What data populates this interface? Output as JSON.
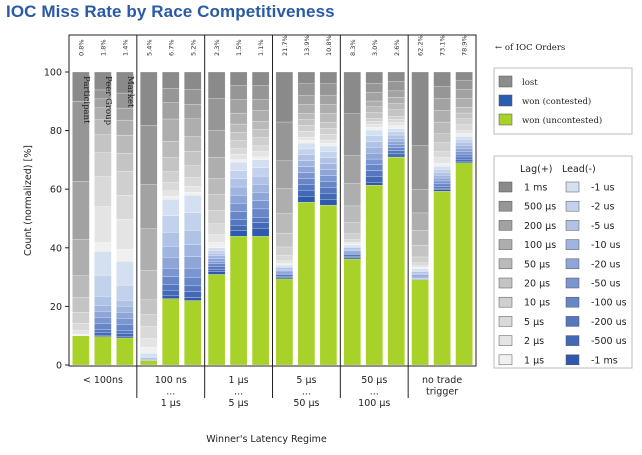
{
  "chart_data": {
    "type": "bar",
    "title": "IOC Miss Rate by Race Competitiveness",
    "ylabel": "Count (normalized) [%]",
    "xlabel": "Winner's Latency Regime",
    "ylim": [
      0,
      100
    ],
    "yticks": [
      0,
      20,
      40,
      60,
      80,
      100
    ],
    "group_labels": [
      [
        "< 100ns"
      ],
      [
        "100 ns",
        "...",
        "1 μs"
      ],
      [
        "1 μs",
        "...",
        "5 μs"
      ],
      [
        "5 μs",
        "...",
        "50 μs"
      ],
      [
        "50 μs",
        "...",
        "100 μs"
      ],
      [
        "no trade",
        "trigger"
      ]
    ],
    "bar_labels": [
      "Participant",
      "Peer Group",
      "Market"
    ],
    "ioc_percent": [
      [
        "0.8%",
        "1.8%",
        "1.4%"
      ],
      [
        "5.4%",
        "6.7%",
        "5.2%"
      ],
      [
        "2.3%",
        "1.5%",
        "1.1%"
      ],
      [
        "21.7%",
        "13.9%",
        "10.8%"
      ],
      [
        "8.3%",
        "3.0%",
        "2.6%"
      ],
      [
        "62.2%",
        "73.1%",
        "78.9%"
      ]
    ],
    "ioc_note": "← of IOC Orders",
    "status_legend": [
      {
        "label": "lost",
        "color": "#8c8c8c"
      },
      {
        "label": "won (contested)",
        "color": "#2a5cb0"
      },
      {
        "label": "won (uncontested)",
        "color": "#a8d22a"
      }
    ],
    "lag_title": "Lag(+)",
    "lead_title": "Lead(-)",
    "lag_labels": [
      "1 ms",
      "500 μs",
      "200 μs",
      "100 μs",
      "50 μs",
      "20 μs",
      "10 μs",
      "5 μs",
      "2 μs",
      "1 μs"
    ],
    "lead_labels": [
      "-1 us",
      "-2 us",
      "-5 us",
      "-10 us",
      "-20 us",
      "-50 us",
      "-100 us",
      "-200 us",
      "-500 us",
      "-1 ms"
    ],
    "lag_colors": [
      "#8a8a8a",
      "#969696",
      "#a2a2a2",
      "#aeaeae",
      "#bababa",
      "#c4c4c4",
      "#cfcfcf",
      "#d9d9d9",
      "#e4e4e4",
      "#f0f0f0"
    ],
    "lead_colors": [
      "#d4e0f2",
      "#c3d2ec",
      "#b1c3e5",
      "#9fb4de",
      "#8da5d7",
      "#7b95d0",
      "#6786c8",
      "#5577bf",
      "#4268b6",
      "#2f59ad"
    ],
    "uncontested_color": "#a8d22a",
    "bars": [
      {
        "lag": [
          8,
          22,
          16,
          10,
          6,
          4,
          3,
          2,
          1,
          0.5
        ],
        "lead": [
          0,
          0,
          0,
          0,
          0,
          0,
          0,
          0,
          0,
          0
        ],
        "uncontested": 8
      },
      {
        "lag": [
          6,
          3,
          3,
          4,
          5,
          6,
          8,
          10,
          12,
          3
        ],
        "lead": [
          8,
          7,
          3,
          2,
          2,
          2,
          2,
          1,
          1,
          0.5
        ],
        "uncontested": 9.5
      },
      {
        "lag": [
          7,
          5,
          4,
          5,
          6,
          6,
          8,
          8,
          10,
          4
        ],
        "lead": [
          8,
          5,
          2,
          2,
          2,
          2,
          2,
          1,
          1,
          0.5
        ],
        "uncontested": 9
      },
      {
        "lag": [
          18,
          20,
          15,
          14,
          10,
          5,
          4,
          4,
          3,
          2
        ],
        "lead": [
          1,
          0.5,
          0.5,
          0.5,
          0,
          0,
          0,
          0,
          0,
          0
        ],
        "uncontested": 1.5
      },
      {
        "lag": [
          6,
          5,
          6,
          8,
          6,
          5,
          4,
          3,
          2,
          1
        ],
        "lead": [
          6,
          6,
          5,
          4,
          4,
          3,
          3,
          2,
          2,
          1
        ],
        "uncontested": 24
      },
      {
        "lag": [
          6,
          5,
          5,
          6,
          5,
          5,
          4,
          3,
          2,
          1
        ],
        "lead": [
          6,
          6,
          5,
          4,
          4,
          3,
          3,
          2,
          2,
          1
        ],
        "uncontested": 22
      },
      {
        "lag": [
          10,
          12,
          10,
          8,
          6,
          6,
          5,
          4,
          3,
          2
        ],
        "lead": [
          1,
          1,
          1,
          1,
          1,
          1,
          1,
          1,
          1,
          1
        ],
        "uncontested": 34
      },
      {
        "lag": [
          5,
          5,
          5,
          4,
          3,
          3,
          3,
          2,
          2,
          1
        ],
        "lead": [
          3,
          3,
          3,
          3,
          3,
          3,
          3,
          2,
          2,
          2
        ],
        "uncontested": 47
      },
      {
        "lag": [
          5,
          5,
          4,
          4,
          3,
          3,
          3,
          2,
          2,
          1
        ],
        "lead": [
          3,
          3,
          3,
          3,
          3,
          3,
          3,
          2,
          2,
          3
        ],
        "uncontested": 47
      },
      {
        "lag": [
          18,
          14,
          10,
          9,
          7,
          5,
          3,
          2,
          1,
          0.5
        ],
        "lead": [
          0.5,
          0.5,
          0.5,
          0.5,
          0.5,
          0.5,
          0.5,
          0.5,
          0.5,
          0.5
        ],
        "uncontested": 31
      },
      {
        "lag": [
          4,
          4,
          3,
          3,
          2,
          2,
          2,
          2,
          1,
          1
        ],
        "lead": [
          2,
          2,
          2,
          2,
          2,
          2,
          2,
          2,
          2,
          2
        ],
        "uncontested": 55
      },
      {
        "lag": [
          4,
          4,
          3,
          3,
          3,
          2,
          2,
          2,
          1,
          1
        ],
        "lead": [
          2,
          2,
          2,
          2,
          2,
          2,
          2,
          2,
          2,
          2
        ],
        "uncontested": 54
      },
      {
        "lag": [
          15,
          15,
          10,
          8,
          6,
          4,
          2,
          1,
          0.5,
          0.5
        ],
        "lead": [
          0.5,
          0.5,
          0.5,
          0.5,
          0.5,
          0.5,
          0.5,
          0.5,
          0.5,
          0.5
        ],
        "uncontested": 38
      },
      {
        "lag": [
          4,
          3,
          3,
          2,
          2,
          2,
          1,
          1,
          1,
          1
        ],
        "lead": [
          2,
          2,
          2,
          2,
          2,
          2,
          2,
          2,
          2,
          1
        ],
        "uncontested": 62
      },
      {
        "lag": [
          3,
          3,
          2,
          2,
          2,
          2,
          1,
          1,
          1,
          1
        ],
        "lead": [
          1,
          1,
          1,
          1,
          1,
          1,
          1,
          1,
          1,
          0
        ],
        "uncontested": 66
      },
      {
        "lag": [
          25,
          15,
          8,
          6,
          5,
          4,
          2,
          1,
          0.5,
          0.5
        ],
        "lead": [
          0.5,
          0.5,
          0.5,
          0.5,
          0.5,
          0.5,
          0.2,
          0.2,
          0.2,
          0.2
        ],
        "uncontested": 29
      },
      {
        "lag": [
          5,
          4,
          4,
          4,
          4,
          3,
          3,
          2,
          2,
          1
        ],
        "lead": [
          1,
          1,
          1,
          1,
          1,
          1,
          1,
          0.5,
          0.5,
          0.5
        ],
        "uncontested": 59
      },
      {
        "lag": [
          3,
          3,
          3,
          3,
          2,
          2,
          2,
          2,
          1,
          1
        ],
        "lead": [
          1,
          1,
          1,
          1,
          1,
          1,
          1,
          1,
          0.5,
          0.5
        ],
        "uncontested": 69
      }
    ]
  }
}
